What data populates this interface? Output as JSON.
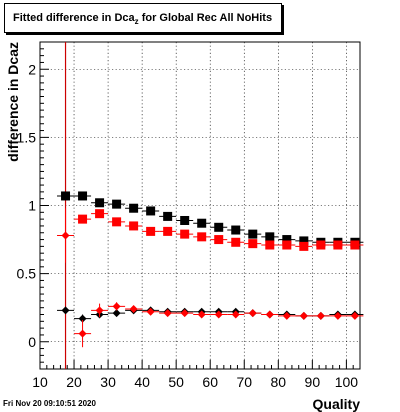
{
  "title": {
    "main": "Fitted difference in Dca",
    "sub": "z",
    "rest": " for Global Rec All NoHits"
  },
  "footer": {
    "timestamp": "Fri Nov 20 09:10:51 2020"
  },
  "chart_data": {
    "type": "scatter",
    "title": "Fitted difference in Dcaz for Global Rec All NoHits",
    "xlabel": "Quality",
    "ylabel": "difference in Dcaz",
    "xlim": [
      10,
      104
    ],
    "ylim": [
      -0.2,
      2.2
    ],
    "xticks": [
      10,
      20,
      30,
      40,
      50,
      60,
      70,
      80,
      90,
      100
    ],
    "xtick_labels": [
      "10",
      "20",
      "30",
      "40",
      "50",
      "60",
      "70",
      "80",
      "90",
      "100"
    ],
    "yticks": [
      0,
      0.5,
      1,
      1.5,
      2
    ],
    "ytick_labels": [
      "0",
      "0.5",
      "1",
      "1.5",
      "2"
    ],
    "grid": true,
    "vertical_line": {
      "x": 17.5,
      "color": "#cc0000"
    },
    "series": [
      {
        "marker": "square",
        "color": "#000000",
        "x": [
          17.5,
          22.5,
          27.5,
          32.5,
          37.5,
          42.5,
          47.5,
          52.5,
          57.5,
          62.5,
          67.5,
          72.5,
          77.5,
          82.5,
          87.5,
          92.5,
          97.5,
          102.5
        ],
        "y": [
          1.07,
          1.07,
          1.02,
          1.01,
          0.98,
          0.96,
          0.92,
          0.89,
          0.87,
          0.84,
          0.82,
          0.79,
          0.77,
          0.75,
          0.74,
          0.73,
          0.73,
          0.73
        ],
        "yerr": [
          0.015,
          0.015,
          0.012,
          0.01,
          0.01,
          0.01,
          0.01,
          0.01,
          0.01,
          0.01,
          0.01,
          0.01,
          0.01,
          0.01,
          0.01,
          0.01,
          0.01,
          0.01
        ]
      },
      {
        "marker": "square",
        "color": "#ff0000",
        "x": [
          22.5,
          27.5,
          32.5,
          37.5,
          42.5,
          47.5,
          52.5,
          57.5,
          62.5,
          67.5,
          72.5,
          77.5,
          82.5,
          87.5,
          92.5,
          97.5,
          102.5
        ],
        "y": [
          0.9,
          0.94,
          0.88,
          0.85,
          0.81,
          0.81,
          0.79,
          0.77,
          0.75,
          0.73,
          0.72,
          0.71,
          0.71,
          0.7,
          0.71,
          0.71,
          0.71
        ],
        "yerr": [
          0.03,
          0.025,
          0.02,
          0.015,
          0.012,
          0.012,
          0.012,
          0.012,
          0.012,
          0.012,
          0.012,
          0.012,
          0.012,
          0.012,
          0.012,
          0.012,
          0.012
        ]
      },
      {
        "marker": "diamond",
        "color": "#000000",
        "x": [
          17.5,
          22.5,
          27.5,
          32.5,
          37.5,
          42.5,
          47.5,
          52.5,
          57.5,
          62.5,
          67.5,
          72.5,
          77.5,
          82.5,
          87.5,
          92.5,
          97.5,
          102.5
        ],
        "y": [
          0.23,
          0.17,
          0.2,
          0.21,
          0.23,
          0.23,
          0.22,
          0.22,
          0.22,
          0.22,
          0.22,
          0.21,
          0.2,
          0.2,
          0.19,
          0.19,
          0.2,
          0.2
        ],
        "yerr": [
          0.02,
          0.03,
          0.02,
          0.015,
          0.012,
          0.012,
          0.012,
          0.012,
          0.012,
          0.012,
          0.012,
          0.012,
          0.012,
          0.012,
          0.012,
          0.012,
          0.012,
          0.012
        ]
      },
      {
        "marker": "diamond",
        "color": "#ff0000",
        "x": [
          17.5,
          22.5,
          27.5,
          32.5,
          37.5,
          42.5,
          47.5,
          52.5,
          57.5,
          62.5,
          67.5,
          72.5,
          77.5,
          82.5,
          87.5,
          92.5,
          97.5,
          102.5
        ],
        "y": [
          0.78,
          0.06,
          0.23,
          0.26,
          0.24,
          0.22,
          0.21,
          0.21,
          0.2,
          0.2,
          0.2,
          0.21,
          0.2,
          0.19,
          0.19,
          0.19,
          0.19,
          0.19
        ],
        "yerr": [
          0.2,
          0.1,
          0.05,
          0.03,
          0.02,
          0.015,
          0.015,
          0.015,
          0.015,
          0.015,
          0.015,
          0.015,
          0.015,
          0.015,
          0.015,
          0.015,
          0.015,
          0.015
        ]
      }
    ]
  }
}
